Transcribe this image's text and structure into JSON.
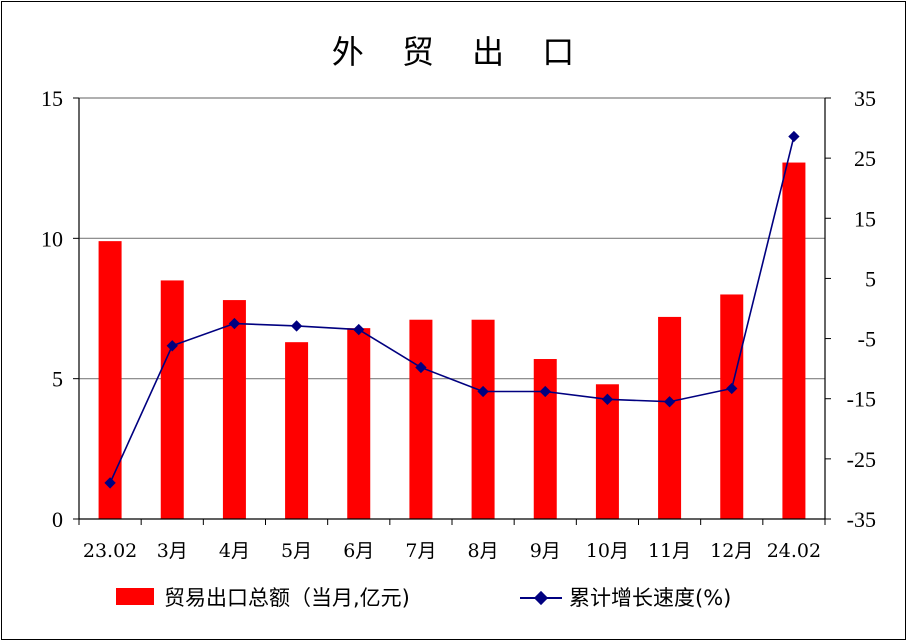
{
  "chart_data": {
    "type": "bar+line",
    "title": "外 贸 出 口",
    "categories": [
      "23.02",
      "3月",
      "4月",
      "5月",
      "6月",
      "7月",
      "8月",
      "9月",
      "10月",
      "11月",
      "12月",
      "24.02"
    ],
    "series": [
      {
        "name": "贸易出口总额（当月,亿元)",
        "type": "bar",
        "axis": "left",
        "color": "#ff0000",
        "values": [
          9.9,
          8.5,
          7.8,
          6.3,
          6.8,
          7.1,
          7.1,
          5.7,
          4.8,
          7.2,
          8.0,
          12.7
        ]
      },
      {
        "name": "累计增长速度(%)",
        "type": "line",
        "axis": "right",
        "color": "#000080",
        "values": [
          -29.0,
          -6.2,
          -2.5,
          -2.9,
          -3.5,
          -9.8,
          -13.8,
          -13.8,
          -15.1,
          -15.5,
          -13.3,
          28.6
        ]
      }
    ],
    "left_axis": {
      "ylim": [
        0,
        15
      ],
      "ticks": [
        "0",
        "5",
        "10",
        "15"
      ]
    },
    "right_axis": {
      "ylim": [
        -35,
        35
      ],
      "ticks": [
        "-35",
        "-25",
        "-15",
        "-5",
        "5",
        "15",
        "25",
        "35"
      ]
    },
    "grid": "horizontal at left-axis ticks",
    "legend": "bottom"
  }
}
